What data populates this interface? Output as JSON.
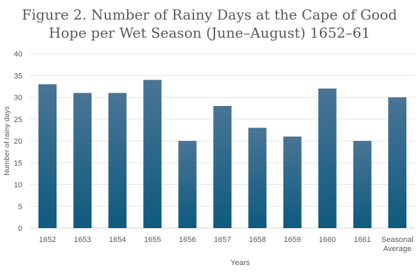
{
  "chart_data": {
    "type": "bar",
    "title_line1": "Figure 2. Number of Rainy Days at the Cape of Good",
    "title_line2": "Hope per Wet Season (June–August) 1652–61",
    "categories": [
      "1652",
      "1653",
      "1654",
      "1655",
      "1656",
      "1657",
      "1658",
      "1659",
      "1660",
      "1661",
      "Seasonal Average"
    ],
    "values": [
      33,
      31,
      31,
      34,
      20,
      28,
      23,
      21,
      32,
      20,
      30
    ],
    "xlabel": "Years",
    "ylabel": "Number of rainy days",
    "ylim": [
      0,
      40
    ],
    "yticks": [
      0,
      5,
      10,
      15,
      20,
      25,
      30,
      35,
      40
    ],
    "grid": true,
    "bar_color_top": "#4a7596",
    "bar_color_bottom": "#0e5a7e"
  }
}
